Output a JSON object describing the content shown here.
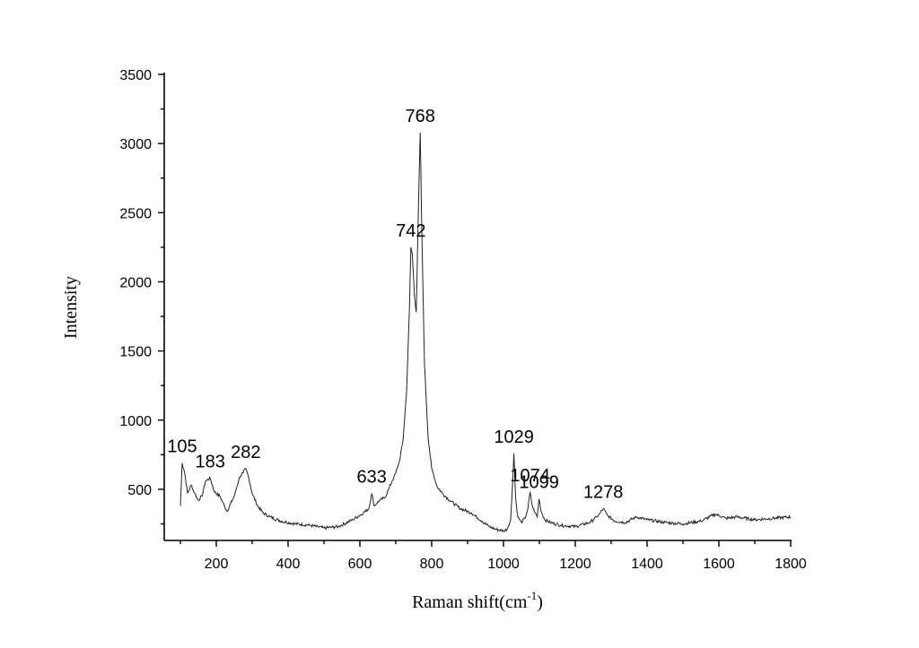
{
  "chart_data": {
    "type": "line",
    "title": "",
    "xlabel": "Raman shift(cm",
    "xlabel_sup": "-1",
    "xlabel_close": ")",
    "ylabel": "Intensity",
    "xlim": [
      55,
      1800
    ],
    "ylim": [
      130,
      3500
    ],
    "x_ticks": [
      200,
      400,
      600,
      800,
      1000,
      1200,
      1400,
      1600,
      1800
    ],
    "y_ticks": [
      500,
      1000,
      1500,
      2000,
      2500,
      3000,
      3500
    ],
    "grid": false,
    "line_color": "#222222",
    "series": [
      {
        "x": [
          100,
          105,
          112,
          120,
          130,
          140,
          150,
          160,
          170,
          183,
          195,
          210,
          230,
          250,
          265,
          275,
          282,
          290,
          300,
          315,
          330,
          350,
          380,
          420,
          460,
          500,
          540,
          580,
          610,
          625,
          633,
          640,
          655,
          670,
          680,
          690,
          700,
          710,
          720,
          730,
          738,
          742,
          746,
          752,
          757,
          762,
          768,
          773,
          780,
          790,
          800,
          815,
          830,
          850,
          880,
          910,
          940,
          960,
          980,
          1000,
          1010,
          1020,
          1025,
          1029,
          1034,
          1040,
          1050,
          1060,
          1068,
          1074,
          1080,
          1088,
          1094,
          1099,
          1105,
          1115,
          1130,
          1160,
          1200,
          1240,
          1260,
          1270,
          1278,
          1290,
          1310,
          1340,
          1370,
          1400,
          1450,
          1500,
          1550,
          1590,
          1620,
          1650,
          1700,
          1750,
          1800
        ],
        "y": [
          380,
          690,
          620,
          470,
          530,
          470,
          420,
          450,
          560,
          580,
          480,
          450,
          340,
          450,
          590,
          620,
          650,
          590,
          470,
          380,
          330,
          300,
          270,
          250,
          240,
          220,
          230,
          280,
          330,
          360,
          470,
          380,
          420,
          440,
          500,
          560,
          620,
          700,
          850,
          1200,
          1800,
          2250,
          2200,
          1900,
          1780,
          2400,
          3080,
          2300,
          1400,
          880,
          650,
          520,
          470,
          420,
          360,
          330,
          270,
          230,
          210,
          200,
          210,
          280,
          520,
          760,
          430,
          300,
          260,
          290,
          360,
          480,
          380,
          330,
          300,
          430,
          340,
          280,
          260,
          240,
          230,
          260,
          300,
          330,
          360,
          310,
          270,
          260,
          300,
          280,
          260,
          250,
          270,
          320,
          290,
          300,
          280,
          290,
          300
        ]
      }
    ],
    "annotations": [
      {
        "text": "105",
        "x": 105,
        "y": 690
      },
      {
        "text": "183",
        "x": 183,
        "y": 580
      },
      {
        "text": "282",
        "x": 282,
        "y": 650
      },
      {
        "text": "633",
        "x": 633,
        "y": 470
      },
      {
        "text": "742",
        "x": 742,
        "y": 2250
      },
      {
        "text": "768",
        "x": 768,
        "y": 3080
      },
      {
        "text": "1029",
        "x": 1029,
        "y": 760
      },
      {
        "text": "1074",
        "x": 1074,
        "y": 480
      },
      {
        "text": "1099",
        "x": 1099,
        "y": 430
      },
      {
        "text": "1278",
        "x": 1278,
        "y": 360
      }
    ]
  }
}
